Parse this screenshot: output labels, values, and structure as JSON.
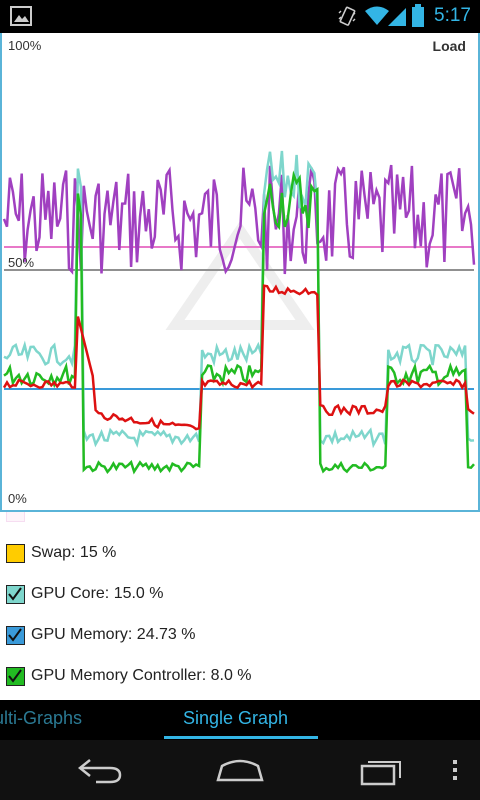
{
  "status_bar": {
    "time": "5:17",
    "icons": [
      "gallery-icon",
      "vibrate-icon",
      "wifi-icon",
      "signal-icon",
      "battery-icon"
    ]
  },
  "graph": {
    "title": "Load",
    "label_top": "100%",
    "label_mid": "50%",
    "label_bottom": "0%"
  },
  "legend": {
    "items": [
      {
        "label": "Swap: 15 %",
        "color": "#ffcc00",
        "checked": false
      },
      {
        "label": "GPU Core: 15.0 %",
        "color": "#7ed6cc",
        "checked": true
      },
      {
        "label": "GPU Memory: 24.73 %",
        "color": "#3a9ad9",
        "checked": true
      },
      {
        "label": "GPU Memory Controller: 8.0 %",
        "color": "#22bb22",
        "checked": true
      }
    ]
  },
  "tabs": {
    "multi": "ulti-Graphs",
    "single": "Single Graph"
  },
  "nav": {
    "icons": [
      "back-icon",
      "home-icon",
      "recent-apps-icon",
      "menu-icon"
    ]
  },
  "colors": {
    "accent": "#33b5e5",
    "purple": "#a040c0",
    "pink": "#e878c8",
    "gray": "#909090",
    "red": "#dd1111",
    "teal": "#7ed6cc",
    "green": "#22bb22",
    "blue": "#3a9ad9"
  }
}
